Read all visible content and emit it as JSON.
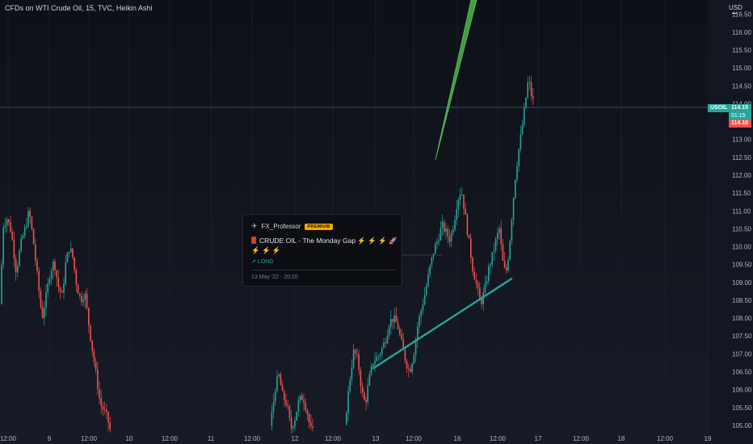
{
  "header": {
    "title": "CFDs on WTI Crude Oil, 15, TVC, Heikin Ashi",
    "currency": "USD"
  },
  "idea": {
    "author": "FX_Professor",
    "badge": "PREMIUM",
    "title": "CRUDE OIL - The Monday Gap ⚡️ ⚡️ ⚡️ 🚀 ⚡️ ⚡️ ⚡️",
    "direction": "↗ LONG",
    "date": "13 May '22 - 20:20"
  },
  "price_tags": {
    "symbol": "USOIL",
    "last": "114.15",
    "countdown": "01:15",
    "low": "114.10"
  },
  "colors": {
    "background": "#131722",
    "up": "#26a69a",
    "down": "#ef5350",
    "trendline": "#26a69a",
    "arrow": "#4caf50",
    "price_line": "#1e5c56"
  },
  "chart_data": {
    "type": "candlestick",
    "style": "Heikin Ashi",
    "interval": "15",
    "y_axis_ticks": [
      "116.50",
      "116.00",
      "115.50",
      "115.00",
      "114.50",
      "114.00",
      "113.50",
      "113.00",
      "112.50",
      "112.00",
      "111.50",
      "111.00",
      "110.50",
      "110.00",
      "109.50",
      "109.00",
      "108.50",
      "108.00",
      "107.50",
      "107.00",
      "106.50",
      "106.00",
      "105.50",
      "105.00"
    ],
    "ylim": [
      104.75,
      116.9
    ],
    "x_axis_ticks": [
      "12:00",
      "9",
      "12:00",
      "10",
      "12:00",
      "11",
      "12:00",
      "12",
      "12:00",
      "13",
      "12:00",
      "16",
      "12:00",
      "17",
      "12:00",
      "18",
      "12:00",
      "19"
    ],
    "close_path": [
      {
        "x": 0,
        "y": 108.4
      },
      {
        "x": 4,
        "y": 110.6
      },
      {
        "x": 9,
        "y": 110.8
      },
      {
        "x": 14,
        "y": 110.4
      },
      {
        "x": 20,
        "y": 109.3
      },
      {
        "x": 26,
        "y": 110.1
      },
      {
        "x": 31,
        "y": 110.5
      },
      {
        "x": 36,
        "y": 111.0
      },
      {
        "x": 41,
        "y": 110.2
      },
      {
        "x": 47,
        "y": 109.0
      },
      {
        "x": 52,
        "y": 108.0
      },
      {
        "x": 57,
        "y": 108.6
      },
      {
        "x": 62,
        "y": 109.3
      },
      {
        "x": 67,
        "y": 109.6
      },
      {
        "x": 72,
        "y": 108.9
      },
      {
        "x": 77,
        "y": 108.6
      },
      {
        "x": 81,
        "y": 109.5
      },
      {
        "x": 86,
        "y": 110.0
      },
      {
        "x": 90,
        "y": 109.7
      },
      {
        "x": 95,
        "y": 108.9
      },
      {
        "x": 100,
        "y": 108.5
      },
      {
        "x": 105,
        "y": 108.7
      },
      {
        "x": 110,
        "y": 107.8
      },
      {
        "x": 115,
        "y": 107.0
      },
      {
        "x": 119,
        "y": 106.4
      },
      {
        "x": 124,
        "y": 105.6
      },
      {
        "x": 129,
        "y": 105.4
      },
      {
        "x": 133,
        "y": 105.2
      },
      {
        "x": 137,
        "y": 104.8
      },
      {
        "x": 333,
        "y": 104.8
      },
      {
        "x": 337,
        "y": 105.4
      },
      {
        "x": 341,
        "y": 106.1
      },
      {
        "x": 345,
        "y": 106.4
      },
      {
        "x": 350,
        "y": 105.8
      },
      {
        "x": 355,
        "y": 105.6
      },
      {
        "x": 360,
        "y": 104.9
      },
      {
        "x": 365,
        "y": 105.2
      },
      {
        "x": 370,
        "y": 105.7
      },
      {
        "x": 375,
        "y": 105.8
      },
      {
        "x": 380,
        "y": 105.4
      },
      {
        "x": 384,
        "y": 104.9
      },
      {
        "x": 388,
        "y": 104.8
      },
      {
        "x": 426,
        "y": 104.9
      },
      {
        "x": 430,
        "y": 105.7
      },
      {
        "x": 434,
        "y": 106.5
      },
      {
        "x": 438,
        "y": 107.1
      },
      {
        "x": 443,
        "y": 106.8
      },
      {
        "x": 448,
        "y": 105.9
      },
      {
        "x": 452,
        "y": 105.6
      },
      {
        "x": 457,
        "y": 106.3
      },
      {
        "x": 462,
        "y": 106.8
      },
      {
        "x": 467,
        "y": 106.9
      },
      {
        "x": 472,
        "y": 107.1
      },
      {
        "x": 477,
        "y": 107.4
      },
      {
        "x": 482,
        "y": 107.9
      },
      {
        "x": 487,
        "y": 108.0
      },
      {
        "x": 492,
        "y": 107.8
      },
      {
        "x": 497,
        "y": 107.3
      },
      {
        "x": 502,
        "y": 106.8
      },
      {
        "x": 507,
        "y": 106.5
      },
      {
        "x": 512,
        "y": 107.0
      },
      {
        "x": 517,
        "y": 107.8
      },
      {
        "x": 522,
        "y": 108.3
      },
      {
        "x": 527,
        "y": 108.8
      },
      {
        "x": 532,
        "y": 109.4
      },
      {
        "x": 537,
        "y": 109.9
      },
      {
        "x": 542,
        "y": 110.2
      },
      {
        "x": 547,
        "y": 110.6
      },
      {
        "x": 552,
        "y": 110.4
      },
      {
        "x": 557,
        "y": 110.2
      },
      {
        "x": 562,
        "y": 110.7
      },
      {
        "x": 566,
        "y": 111.3
      },
      {
        "x": 571,
        "y": 111.6
      },
      {
        "x": 575,
        "y": 111.0
      },
      {
        "x": 580,
        "y": 110.2
      },
      {
        "x": 585,
        "y": 109.4
      },
      {
        "x": 590,
        "y": 108.9
      },
      {
        "x": 595,
        "y": 108.4
      },
      {
        "x": 600,
        "y": 108.8
      },
      {
        "x": 605,
        "y": 109.4
      },
      {
        "x": 610,
        "y": 109.8
      },
      {
        "x": 614,
        "y": 110.2
      },
      {
        "x": 618,
        "y": 110.5
      },
      {
        "x": 622,
        "y": 109.6
      },
      {
        "x": 626,
        "y": 109.2
      },
      {
        "x": 630,
        "y": 109.9
      },
      {
        "x": 634,
        "y": 111.0
      },
      {
        "x": 638,
        "y": 112.0
      },
      {
        "x": 642,
        "y": 112.7
      },
      {
        "x": 646,
        "y": 113.3
      },
      {
        "x": 650,
        "y": 114.0
      },
      {
        "x": 654,
        "y": 114.7
      },
      {
        "x": 658,
        "y": 114.2
      },
      {
        "x": 661,
        "y": 114.0
      }
    ],
    "last_price": 114.15,
    "trendline": {
      "from": {
        "x": 462,
        "y": 106.6
      },
      "to": {
        "x": 633,
        "y": 109.1
      }
    }
  }
}
